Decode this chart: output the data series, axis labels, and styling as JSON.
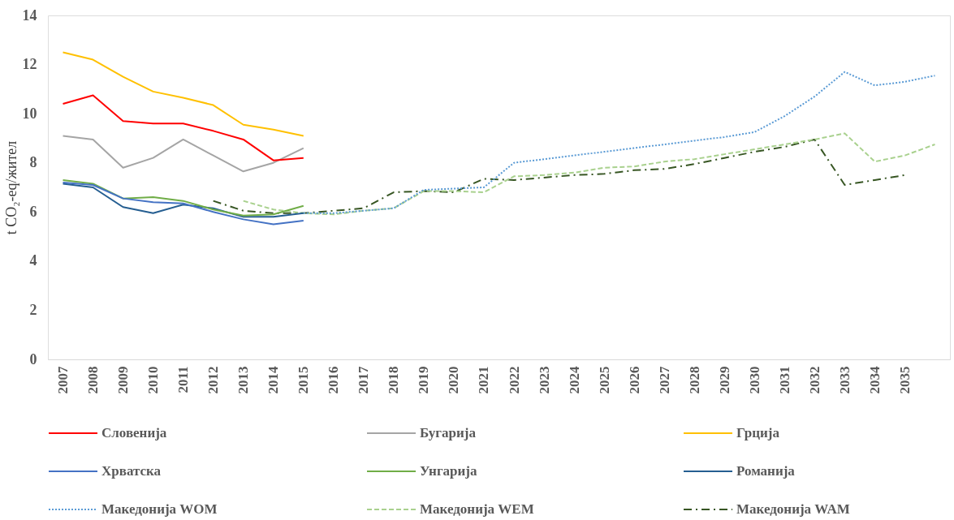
{
  "chart_data": {
    "type": "line",
    "ylabel": "t CO₂-eq/жител",
    "categories": [
      "2007",
      "2008",
      "2009",
      "2010",
      "2011",
      "2012",
      "2013",
      "2014",
      "2015",
      "2016",
      "2017",
      "2018",
      "2019",
      "2020",
      "2021",
      "2022",
      "2023",
      "2024",
      "2025",
      "2026",
      "2027",
      "2028",
      "2029",
      "2030",
      "2031",
      "2032",
      "2033",
      "2034",
      "2035",
      null
    ],
    "ylim": [
      0,
      14
    ],
    "yticks": [
      0,
      2,
      4,
      6,
      8,
      10,
      12,
      14
    ],
    "grid": false,
    "legend": "bottom",
    "marker": "none",
    "series": [
      {
        "name": "Словенија",
        "color": "#ff0000",
        "line_style": "solid",
        "values": [
          10.4,
          10.75,
          9.7,
          9.6,
          9.6,
          9.3,
          8.95,
          8.1,
          8.2,
          null,
          null,
          null,
          null,
          null,
          null,
          null,
          null,
          null,
          null,
          null,
          null,
          null,
          null,
          null,
          null,
          null,
          null,
          null,
          null,
          null
        ]
      },
      {
        "name": "Бугарија",
        "color": "#a5a5a5",
        "line_style": "solid",
        "values": [
          9.1,
          8.95,
          7.8,
          8.2,
          8.95,
          8.3,
          7.65,
          8.0,
          8.6,
          null,
          null,
          null,
          null,
          null,
          null,
          null,
          null,
          null,
          null,
          null,
          null,
          null,
          null,
          null,
          null,
          null,
          null,
          null,
          null,
          null
        ]
      },
      {
        "name": "Грција",
        "color": "#ffc000",
        "line_style": "solid",
        "values": [
          12.5,
          12.2,
          11.5,
          10.9,
          10.65,
          10.35,
          9.55,
          9.35,
          9.1,
          null,
          null,
          null,
          null,
          null,
          null,
          null,
          null,
          null,
          null,
          null,
          null,
          null,
          null,
          null,
          null,
          null,
          null,
          null,
          null,
          null
        ]
      },
      {
        "name": "Хрватска",
        "color": "#4472c4",
        "line_style": "solid",
        "values": [
          7.2,
          7.1,
          6.55,
          6.4,
          6.35,
          6.0,
          5.7,
          5.5,
          5.65,
          null,
          null,
          null,
          null,
          null,
          null,
          null,
          null,
          null,
          null,
          null,
          null,
          null,
          null,
          null,
          null,
          null,
          null,
          null,
          null,
          null
        ]
      },
      {
        "name": "Унгарија",
        "color": "#70ad47",
        "line_style": "solid",
        "values": [
          7.3,
          7.15,
          6.55,
          6.6,
          6.45,
          6.1,
          5.85,
          5.9,
          6.25,
          null,
          null,
          null,
          null,
          null,
          null,
          null,
          null,
          null,
          null,
          null,
          null,
          null,
          null,
          null,
          null,
          null,
          null,
          null,
          null,
          null
        ]
      },
      {
        "name": "Романија",
        "color": "#255e91",
        "line_style": "solid",
        "values": [
          7.15,
          7.0,
          6.2,
          5.95,
          6.3,
          6.15,
          5.8,
          5.8,
          5.95,
          null,
          null,
          null,
          null,
          null,
          null,
          null,
          null,
          null,
          null,
          null,
          null,
          null,
          null,
          null,
          null,
          null,
          null,
          null,
          null,
          null
        ]
      },
      {
        "name": "Македонија WOM",
        "color": "#5b9bd5",
        "line_style": "dotted",
        "values": [
          null,
          null,
          null,
          null,
          null,
          null,
          null,
          null,
          5.95,
          5.95,
          6.05,
          6.15,
          6.9,
          6.95,
          7.0,
          8.0,
          8.15,
          8.3,
          8.45,
          8.6,
          8.75,
          8.9,
          9.05,
          9.25,
          9.9,
          10.7,
          11.7,
          11.15,
          11.3,
          11.55
        ]
      },
      {
        "name": "Македонија WEM",
        "color": "#a9d18e",
        "line_style": "dashed",
        "values": [
          null,
          null,
          null,
          null,
          null,
          null,
          6.45,
          6.1,
          5.95,
          5.9,
          6.05,
          6.15,
          6.85,
          6.85,
          6.8,
          7.45,
          7.5,
          7.6,
          7.8,
          7.85,
          8.05,
          8.15,
          8.35,
          8.55,
          8.75,
          8.95,
          9.2,
          8.05,
          8.3,
          8.75
        ]
      },
      {
        "name": "Македонија WAM",
        "color": "#375623",
        "line_style": "dashdot",
        "values": [
          null,
          null,
          null,
          null,
          null,
          6.45,
          6.05,
          5.95,
          5.95,
          6.05,
          6.15,
          6.8,
          6.85,
          6.8,
          7.35,
          7.3,
          7.4,
          7.5,
          7.55,
          7.7,
          7.75,
          7.95,
          8.2,
          8.45,
          8.65,
          8.95,
          7.1,
          7.3,
          7.5,
          null
        ]
      }
    ]
  }
}
